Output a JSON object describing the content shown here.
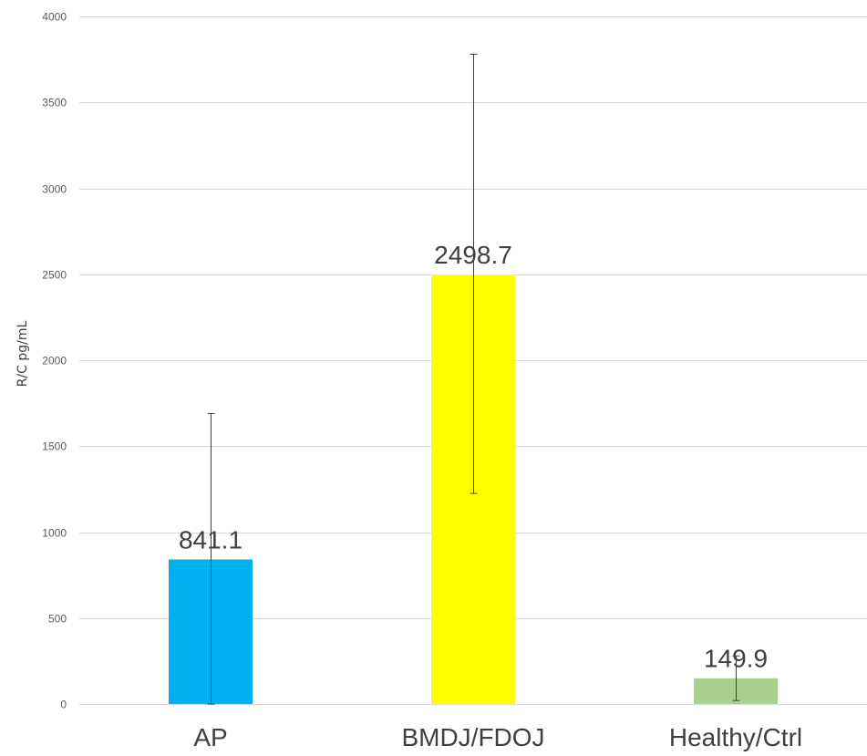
{
  "chart_data": {
    "type": "bar",
    "categories": [
      "AP",
      "BMDJ/FDOJ",
      "Healthy/Ctrl"
    ],
    "series": [
      {
        "values": [
          841.1,
          2498.7,
          149.9
        ],
        "error_low": [
          0,
          1225,
          20
        ],
        "error_high": [
          1690,
          3780,
          280
        ],
        "colors": [
          "#00b0f0",
          "#ffff00",
          "#a9d18e"
        ]
      }
    ],
    "data_labels": [
      "841.1",
      "2498.7",
      "149.9"
    ],
    "title": "",
    "xlabel": "",
    "ylabel": "R/C pg/mL",
    "ylim": [
      0,
      4000
    ],
    "yticks": [
      0,
      500,
      1000,
      1500,
      2000,
      2500,
      3000,
      3500,
      4000
    ],
    "ytick_labels": [
      "0",
      "500",
      "1000",
      "1500",
      "2000",
      "2500",
      "3000",
      "3500",
      "4000"
    ],
    "grid": true,
    "legend": "none"
  }
}
